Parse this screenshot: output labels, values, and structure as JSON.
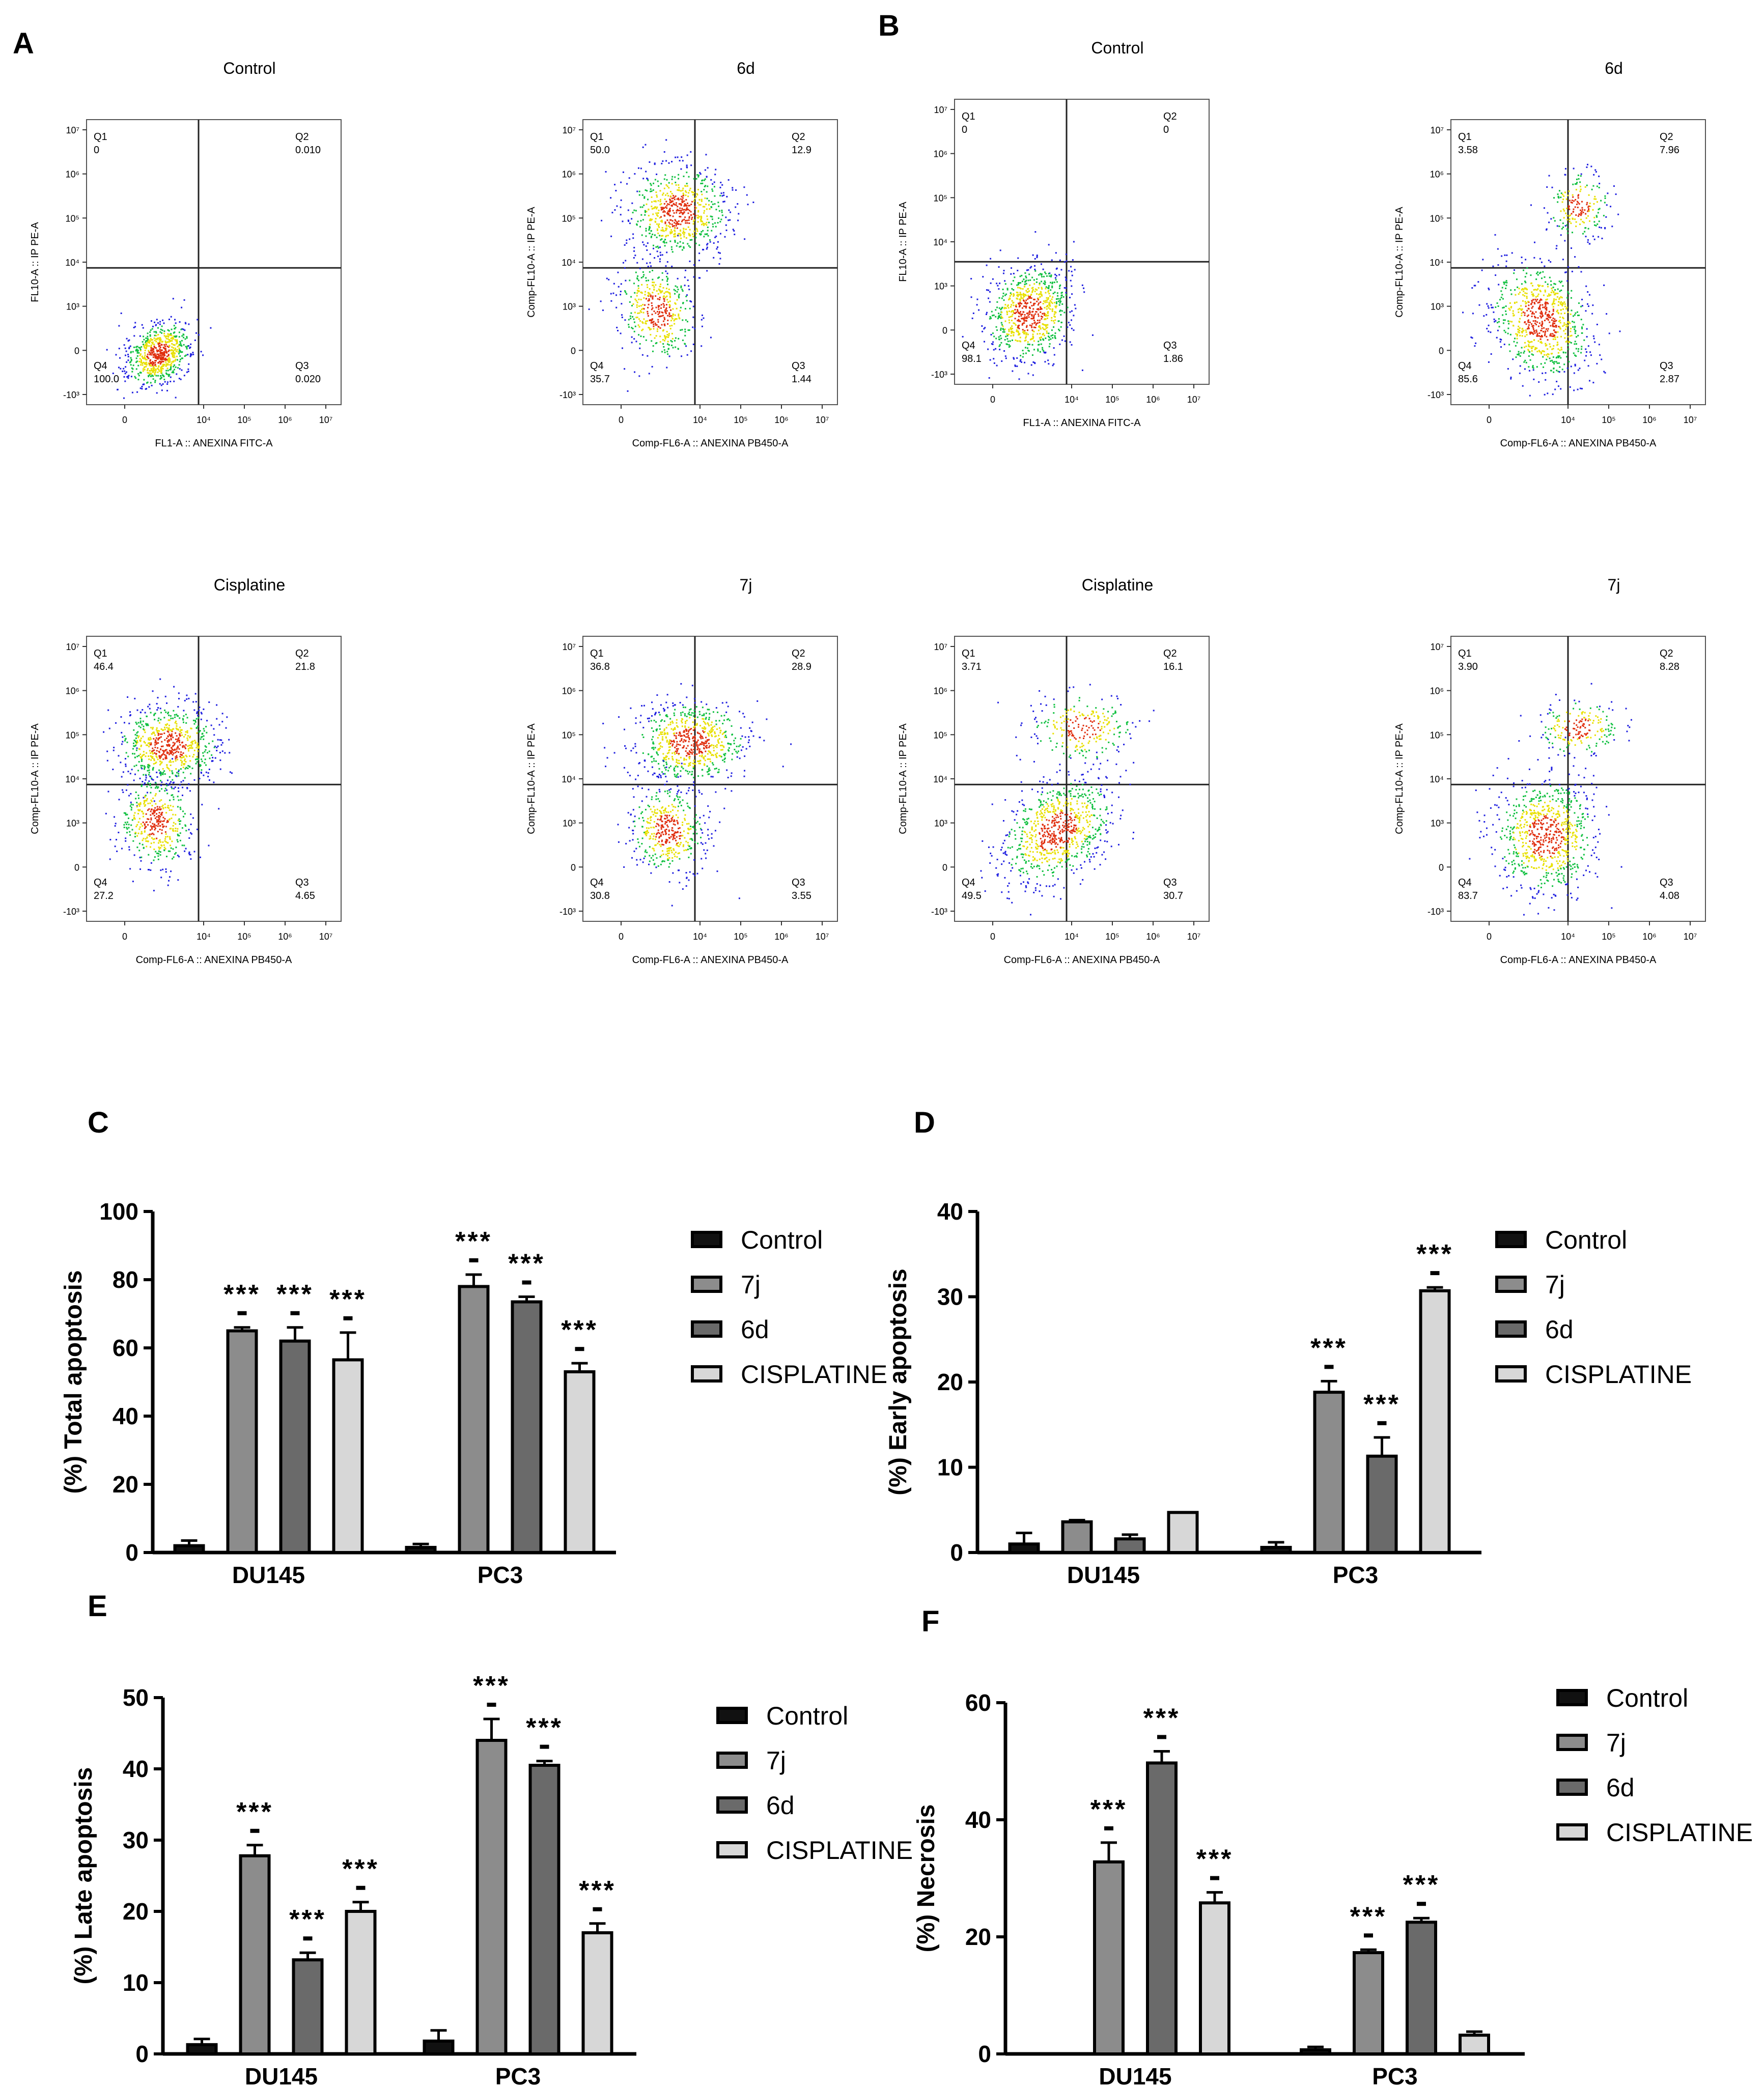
{
  "panel_letters": {
    "A": "A",
    "B": "B",
    "C": "C",
    "D": "D",
    "E": "E",
    "F": "F"
  },
  "legend_labels": [
    "Control",
    "7j",
    "6d",
    "CISPLATINE"
  ],
  "colors": {
    "control": "#111111",
    "7j": "#8c8c8c",
    "6d": "#6a6a6a",
    "cisplatine": "#d7d7d7",
    "axis": "#000000",
    "dot_blue": "#2020e0",
    "dot_green": "#10c040",
    "dot_yellow": "#e8e000",
    "dot_red": "#e03010"
  },
  "flow_panels": [
    {
      "panel": "A",
      "title": "Control",
      "y_axis_label": "FL10-A :: IP PE-A",
      "x_axis_label": "FL1-A :: ANEXINA FITC-A",
      "quadrants": [
        {
          "name": "Q1",
          "value": "0"
        },
        {
          "name": "Q2",
          "value": "0.010"
        },
        {
          "name": "Q3",
          "value": "0.020"
        },
        {
          "name": "Q4",
          "value": "100.0"
        }
      ]
    },
    {
      "panel": "A",
      "title": "6d",
      "y_axis_label": "Comp-FL10-A :: IP PE-A",
      "x_axis_label": "Comp-FL6-A :: ANEXINA PB450-A",
      "quadrants": [
        {
          "name": "Q1",
          "value": "50.0"
        },
        {
          "name": "Q2",
          "value": "12.9"
        },
        {
          "name": "Q3",
          "value": "1.44"
        },
        {
          "name": "Q4",
          "value": "35.7"
        }
      ]
    },
    {
      "panel": "B",
      "title": "Control",
      "y_axis_label": "FL10-A :: IP PE-A",
      "x_axis_label": "FL1-A :: ANEXINA FITC-A",
      "quadrants": [
        {
          "name": "Q1",
          "value": "0"
        },
        {
          "name": "Q2",
          "value": "0"
        },
        {
          "name": "Q3",
          "value": "1.86"
        },
        {
          "name": "Q4",
          "value": "98.1"
        }
      ]
    },
    {
      "panel": "B",
      "title": "6d",
      "y_axis_label": "Comp-FL10-A :: IP PE-A",
      "x_axis_label": "Comp-FL6-A :: ANEXINA PB450-A",
      "quadrants": [
        {
          "name": "Q1",
          "value": "3.58"
        },
        {
          "name": "Q2",
          "value": "7.96"
        },
        {
          "name": "Q3",
          "value": "2.87"
        },
        {
          "name": "Q4",
          "value": "85.6"
        }
      ]
    },
    {
      "panel": "A",
      "title": "Cisplatine",
      "y_axis_label": "Comp-FL10-A :: IP PE-A",
      "x_axis_label": "Comp-FL6-A :: ANEXINA PB450-A",
      "quadrants": [
        {
          "name": "Q1",
          "value": "46.4"
        },
        {
          "name": "Q2",
          "value": "21.8"
        },
        {
          "name": "Q3",
          "value": "4.65"
        },
        {
          "name": "Q4",
          "value": "27.2"
        }
      ]
    },
    {
      "panel": "A",
      "title": "7j",
      "y_axis_label": "Comp-FL10-A :: IP PE-A",
      "x_axis_label": "Comp-FL6-A :: ANEXINA PB450-A",
      "quadrants": [
        {
          "name": "Q1",
          "value": "36.8"
        },
        {
          "name": "Q2",
          "value": "28.9"
        },
        {
          "name": "Q3",
          "value": "3.55"
        },
        {
          "name": "Q4",
          "value": "30.8"
        }
      ]
    },
    {
      "panel": "B",
      "title": "Cisplatine",
      "y_axis_label": "Comp-FL10-A :: IP PE-A",
      "x_axis_label": "Comp-FL6-A :: ANEXINA PB450-A",
      "quadrants": [
        {
          "name": "Q1",
          "value": "3.71"
        },
        {
          "name": "Q2",
          "value": "16.1"
        },
        {
          "name": "Q3",
          "value": "30.7"
        },
        {
          "name": "Q4",
          "value": "49.5"
        }
      ]
    },
    {
      "panel": "B",
      "title": "7j",
      "y_axis_label": "Comp-FL10-A :: IP PE-A",
      "x_axis_label": "Comp-FL6-A :: ANEXINA PB450-A",
      "quadrants": [
        {
          "name": "Q1",
          "value": "3.90"
        },
        {
          "name": "Q2",
          "value": "8.28"
        },
        {
          "name": "Q3",
          "value": "4.08"
        },
        {
          "name": "Q4",
          "value": "83.7"
        }
      ]
    }
  ],
  "flow_axis_ticks": {
    "y": [
      "-10³",
      "0",
      "10³",
      "10⁴",
      "10⁵",
      "10⁶",
      "10⁷"
    ],
    "x": [
      "0",
      "10⁴",
      "10⁵",
      "10⁶",
      "10⁷"
    ]
  },
  "chart_data": [
    {
      "panel": "C",
      "type": "bar",
      "ylabel": "(%) Total apoptosis",
      "ylim": [
        0,
        100
      ],
      "yticks": [
        0,
        20,
        40,
        60,
        80,
        100
      ],
      "categories": [
        "DU145",
        "PC3"
      ],
      "significance": "***",
      "series": [
        {
          "name": "Control",
          "values": [
            2,
            1.5
          ],
          "errors": [
            1.5,
            1
          ],
          "sig": [
            false,
            false
          ]
        },
        {
          "name": "7j",
          "values": [
            65,
            78
          ],
          "errors": [
            1,
            3.5
          ],
          "sig": [
            true,
            true
          ]
        },
        {
          "name": "6d",
          "values": [
            62,
            73.5
          ],
          "errors": [
            4,
            1.5
          ],
          "sig": [
            true,
            true
          ]
        },
        {
          "name": "CISPLATINE",
          "values": [
            56.5,
            53
          ],
          "errors": [
            8,
            2.5
          ],
          "sig": [
            true,
            true
          ]
        }
      ]
    },
    {
      "panel": "D",
      "type": "bar",
      "ylabel": "(%) Early apoptosis",
      "ylim": [
        0,
        40
      ],
      "yticks": [
        0,
        10,
        20,
        30,
        40
      ],
      "categories": [
        "DU145",
        "PC3"
      ],
      "significance": "***",
      "series": [
        {
          "name": "Control",
          "values": [
            1,
            0.6
          ],
          "errors": [
            1.3,
            0.6
          ],
          "sig": [
            false,
            false
          ]
        },
        {
          "name": "7j",
          "values": [
            3.6,
            18.8
          ],
          "errors": [
            0.2,
            1.3
          ],
          "sig": [
            false,
            true
          ]
        },
        {
          "name": "6d",
          "values": [
            1.6,
            11.3
          ],
          "errors": [
            0.5,
            2.2
          ],
          "sig": [
            false,
            true
          ]
        },
        {
          "name": "CISPLATINE",
          "values": [
            4.7,
            30.7
          ],
          "errors": [
            0,
            0.4
          ],
          "sig": [
            false,
            true
          ]
        }
      ]
    },
    {
      "panel": "E",
      "type": "bar",
      "ylabel": "(%) Late apoptosis",
      "ylim": [
        0,
        50
      ],
      "yticks": [
        0,
        10,
        20,
        30,
        40,
        50
      ],
      "categories": [
        "DU145",
        "PC3"
      ],
      "significance": "***",
      "series": [
        {
          "name": "Control",
          "values": [
            1.3,
            1.8
          ],
          "errors": [
            0.8,
            1.5
          ],
          "sig": [
            false,
            false
          ]
        },
        {
          "name": "7j",
          "values": [
            27.8,
            44
          ],
          "errors": [
            1.5,
            3
          ],
          "sig": [
            true,
            true
          ]
        },
        {
          "name": "6d",
          "values": [
            13.2,
            40.5
          ],
          "errors": [
            1,
            0.6
          ],
          "sig": [
            true,
            true
          ]
        },
        {
          "name": "CISPLATINE",
          "values": [
            20,
            17
          ],
          "errors": [
            1.3,
            1.3
          ],
          "sig": [
            true,
            true
          ]
        }
      ]
    },
    {
      "panel": "F",
      "type": "bar",
      "ylabel": "(%) Necrosis",
      "ylim": [
        0,
        60
      ],
      "yticks": [
        0,
        20,
        40,
        60
      ],
      "categories": [
        "DU145",
        "PC3"
      ],
      "significance": "***",
      "series": [
        {
          "name": "Control",
          "values": [
            0,
            0.7
          ],
          "errors": [
            0,
            0.5
          ],
          "sig": [
            false,
            false
          ]
        },
        {
          "name": "7j",
          "values": [
            32.8,
            17.3
          ],
          "errors": [
            3.3,
            0.5
          ],
          "sig": [
            true,
            true
          ]
        },
        {
          "name": "6d",
          "values": [
            49.7,
            22.5
          ],
          "errors": [
            2,
            0.7
          ],
          "sig": [
            true,
            true
          ]
        },
        {
          "name": "CISPLATINE",
          "values": [
            25.8,
            3.2
          ],
          "errors": [
            1.8,
            0.6
          ],
          "sig": [
            true,
            false
          ]
        }
      ]
    }
  ]
}
